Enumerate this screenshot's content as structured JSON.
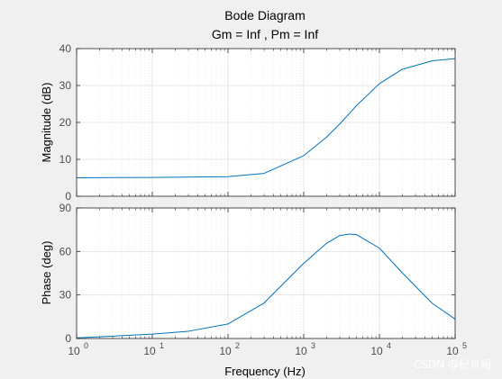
{
  "figure": {
    "title": "Bode Diagram",
    "subtitle": "Gm = Inf ,  Pm = Inf",
    "watermark": "CSDN @纪肖姆",
    "colors": {
      "figure_bg": "#f0f0f0",
      "axes_bg": "#ffffff",
      "line": "#0072bd",
      "axis": "#262626",
      "grid": "#e6e6e6"
    }
  },
  "chart_data": [
    {
      "type": "line",
      "panel": "magnitude",
      "xscale": "log",
      "xlim": [
        1,
        100000
      ],
      "ylim": [
        0,
        40
      ],
      "yticks": [
        0,
        10,
        20,
        30,
        40
      ],
      "ylabel": "Magnitude (dB)",
      "grid": true,
      "series": [
        {
          "x": [
            1,
            10,
            100,
            300,
            1000,
            2000,
            3000,
            5000,
            10000,
            20000,
            50000,
            100000
          ],
          "y": [
            5.0,
            5.1,
            5.3,
            6.2,
            11.0,
            16.0,
            19.6,
            24.6,
            30.5,
            34.4,
            36.7,
            37.3
          ]
        }
      ]
    },
    {
      "type": "line",
      "panel": "phase",
      "xscale": "log",
      "xlim": [
        1,
        100000
      ],
      "ylim": [
        0,
        90
      ],
      "yticks": [
        0,
        30,
        60,
        90
      ],
      "ylabel": "Phase (deg)",
      "xlabel": "Frequency  (Hz)",
      "xtick_exponents": [
        "0",
        "1",
        "2",
        "3",
        "4",
        "5"
      ],
      "grid": true,
      "series": [
        {
          "x": [
            1,
            10,
            30,
            100,
            300,
            1000,
            2000,
            3000,
            4000,
            5000,
            10000,
            20000,
            50000,
            100000
          ],
          "y": [
            0.4,
            3.0,
            5.0,
            10.0,
            24.5,
            51.8,
            65.6,
            71.0,
            72.0,
            71.6,
            62.3,
            45.3,
            24.2,
            13.4
          ]
        }
      ]
    }
  ]
}
